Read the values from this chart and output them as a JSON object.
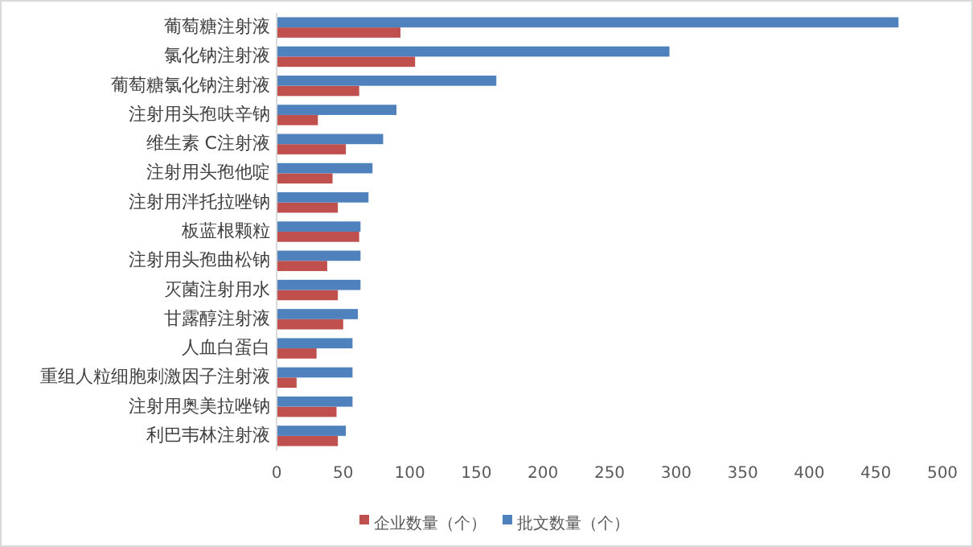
{
  "chart_data": {
    "type": "bar",
    "orientation": "horizontal",
    "categories": [
      "葡萄糖注射液",
      "氯化钠注射液",
      "葡萄糖氯化钠注射液",
      "注射用头孢呋辛钠",
      "维生素 C注射液",
      "注射用头孢他啶",
      "注射用泮托拉唑钠",
      "板蓝根颗粒",
      "注射用头孢曲松钠",
      "灭菌注射用水",
      "甘露醇注射液",
      "人血白蛋白",
      "重组人粒细胞刺激因子注射液",
      "注射用奥美拉唑钠",
      "利巴韦林注射液"
    ],
    "series": [
      {
        "name": "企业数量（个）",
        "color": "#c0504d",
        "values": [
          93,
          104,
          62,
          31,
          52,
          42,
          46,
          62,
          38,
          46,
          50,
          30,
          15,
          45,
          46
        ]
      },
      {
        "name": "批文数量（个）",
        "color": "#4f81bd",
        "values": [
          467,
          295,
          165,
          90,
          80,
          72,
          69,
          63,
          63,
          63,
          61,
          57,
          57,
          57,
          52
        ]
      }
    ],
    "xlim": [
      0,
      500
    ],
    "xticks": [
      0,
      50,
      100,
      150,
      200,
      250,
      300,
      350,
      400,
      450,
      500
    ],
    "grid": false,
    "legend": "bottom"
  }
}
